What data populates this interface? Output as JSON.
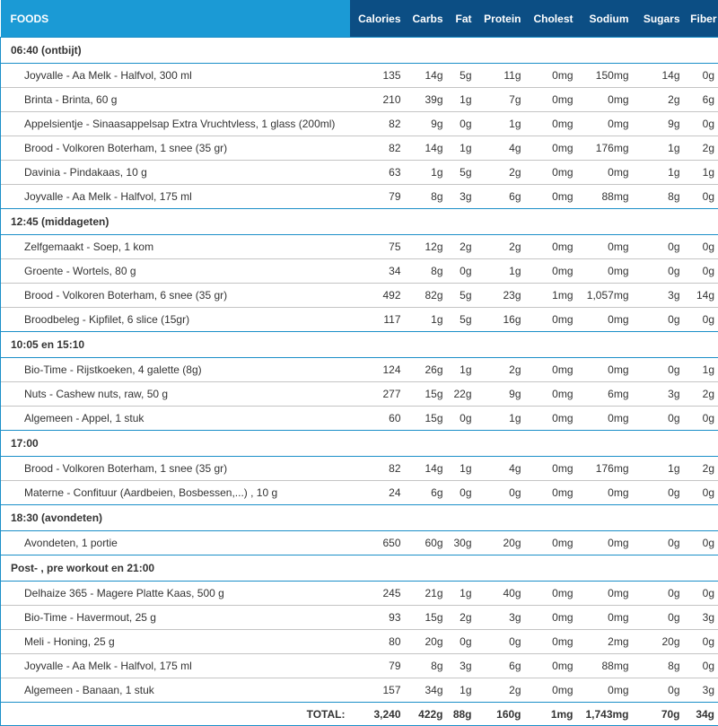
{
  "header": {
    "foods": "FOODS",
    "calories": "Calories",
    "carbs": "Carbs",
    "fat": "Fat",
    "protein": "Protein",
    "cholest": "Cholest",
    "sodium": "Sodium",
    "sugars": "Sugars",
    "fiber": "Fiber"
  },
  "meals": [
    {
      "name": "06:40 (ontbijt)",
      "items": [
        {
          "name": "Joyvalle - Aa Melk - Halfvol, 300 ml",
          "calories": "135",
          "carbs": "14g",
          "fat": "5g",
          "protein": "11g",
          "cholest": "0mg",
          "sodium": "150mg",
          "sugars": "14g",
          "fiber": "0g"
        },
        {
          "name": "Brinta - Brinta, 60 g",
          "calories": "210",
          "carbs": "39g",
          "fat": "1g",
          "protein": "7g",
          "cholest": "0mg",
          "sodium": "0mg",
          "sugars": "2g",
          "fiber": "6g"
        },
        {
          "name": "Appelsientje - Sinaasappelsap Extra Vruchtvless, 1 glass (200ml)",
          "calories": "82",
          "carbs": "9g",
          "fat": "0g",
          "protein": "1g",
          "cholest": "0mg",
          "sodium": "0mg",
          "sugars": "9g",
          "fiber": "0g"
        },
        {
          "name": "Brood - Volkoren Boterham, 1 snee (35 gr)",
          "calories": "82",
          "carbs": "14g",
          "fat": "1g",
          "protein": "4g",
          "cholest": "0mg",
          "sodium": "176mg",
          "sugars": "1g",
          "fiber": "2g"
        },
        {
          "name": "Davinia - Pindakaas, 10 g",
          "calories": "63",
          "carbs": "1g",
          "fat": "5g",
          "protein": "2g",
          "cholest": "0mg",
          "sodium": "0mg",
          "sugars": "1g",
          "fiber": "1g"
        },
        {
          "name": "Joyvalle - Aa Melk - Halfvol, 175 ml",
          "calories": "79",
          "carbs": "8g",
          "fat": "3g",
          "protein": "6g",
          "cholest": "0mg",
          "sodium": "88mg",
          "sugars": "8g",
          "fiber": "0g"
        }
      ]
    },
    {
      "name": "12:45 (middageten)",
      "items": [
        {
          "name": "Zelfgemaakt - Soep, 1 kom",
          "calories": "75",
          "carbs": "12g",
          "fat": "2g",
          "protein": "2g",
          "cholest": "0mg",
          "sodium": "0mg",
          "sugars": "0g",
          "fiber": "0g"
        },
        {
          "name": "Groente - Wortels, 80 g",
          "calories": "34",
          "carbs": "8g",
          "fat": "0g",
          "protein": "1g",
          "cholest": "0mg",
          "sodium": "0mg",
          "sugars": "0g",
          "fiber": "0g"
        },
        {
          "name": "Brood - Volkoren Boterham, 6 snee (35 gr)",
          "calories": "492",
          "carbs": "82g",
          "fat": "5g",
          "protein": "23g",
          "cholest": "1mg",
          "sodium": "1,057mg",
          "sugars": "3g",
          "fiber": "14g"
        },
        {
          "name": "Broodbeleg - Kipfilet, 6 slice (15gr)",
          "calories": "117",
          "carbs": "1g",
          "fat": "5g",
          "protein": "16g",
          "cholest": "0mg",
          "sodium": "0mg",
          "sugars": "0g",
          "fiber": "0g"
        }
      ]
    },
    {
      "name": "10:05 en 15:10",
      "items": [
        {
          "name": "Bio-Time - Rijstkoeken, 4 galette (8g)",
          "calories": "124",
          "carbs": "26g",
          "fat": "1g",
          "protein": "2g",
          "cholest": "0mg",
          "sodium": "0mg",
          "sugars": "0g",
          "fiber": "1g"
        },
        {
          "name": "Nuts - Cashew nuts, raw, 50 g",
          "calories": "277",
          "carbs": "15g",
          "fat": "22g",
          "protein": "9g",
          "cholest": "0mg",
          "sodium": "6mg",
          "sugars": "3g",
          "fiber": "2g"
        },
        {
          "name": "Algemeen - Appel, 1 stuk",
          "calories": "60",
          "carbs": "15g",
          "fat": "0g",
          "protein": "1g",
          "cholest": "0mg",
          "sodium": "0mg",
          "sugars": "0g",
          "fiber": "0g"
        }
      ]
    },
    {
      "name": "17:00",
      "items": [
        {
          "name": "Brood - Volkoren Boterham, 1 snee (35 gr)",
          "calories": "82",
          "carbs": "14g",
          "fat": "1g",
          "protein": "4g",
          "cholest": "0mg",
          "sodium": "176mg",
          "sugars": "1g",
          "fiber": "2g"
        },
        {
          "name": "Materne - Confituur (Aardbeien, Bosbessen,...) , 10 g",
          "calories": "24",
          "carbs": "6g",
          "fat": "0g",
          "protein": "0g",
          "cholest": "0mg",
          "sodium": "0mg",
          "sugars": "0g",
          "fiber": "0g"
        }
      ]
    },
    {
      "name": "18:30 (avondeten)",
      "items": [
        {
          "name": "Avondeten, 1 portie",
          "calories": "650",
          "carbs": "60g",
          "fat": "30g",
          "protein": "20g",
          "cholest": "0mg",
          "sodium": "0mg",
          "sugars": "0g",
          "fiber": "0g"
        }
      ]
    },
    {
      "name": "Post- , pre workout en 21:00",
      "items": [
        {
          "name": "Delhaize 365 - Magere Platte Kaas, 500 g",
          "calories": "245",
          "carbs": "21g",
          "fat": "1g",
          "protein": "40g",
          "cholest": "0mg",
          "sodium": "0mg",
          "sugars": "0g",
          "fiber": "0g"
        },
        {
          "name": "Bio-Time - Havermout, 25 g",
          "calories": "93",
          "carbs": "15g",
          "fat": "2g",
          "protein": "3g",
          "cholest": "0mg",
          "sodium": "0mg",
          "sugars": "0g",
          "fiber": "3g"
        },
        {
          "name": "Meli - Honing, 25 g",
          "calories": "80",
          "carbs": "20g",
          "fat": "0g",
          "protein": "0g",
          "cholest": "0mg",
          "sodium": "2mg",
          "sugars": "20g",
          "fiber": "0g"
        },
        {
          "name": "Joyvalle - Aa Melk - Halfvol, 175 ml",
          "calories": "79",
          "carbs": "8g",
          "fat": "3g",
          "protein": "6g",
          "cholest": "0mg",
          "sodium": "88mg",
          "sugars": "8g",
          "fiber": "0g"
        },
        {
          "name": "Algemeen - Banaan, 1 stuk",
          "calories": "157",
          "carbs": "34g",
          "fat": "1g",
          "protein": "2g",
          "cholest": "0mg",
          "sodium": "0mg",
          "sugars": "0g",
          "fiber": "3g"
        }
      ]
    }
  ],
  "total": {
    "label": "TOTAL:",
    "calories": "3,240",
    "carbs": "422g",
    "fat": "88g",
    "protein": "160g",
    "cholest": "1mg",
    "sodium": "1,743mg",
    "sugars": "70g",
    "fiber": "34g"
  },
  "colors": {
    "header_foods_bg": "#1b9ad5",
    "header_nutrients_bg": "#0c4e84",
    "border_accent": "#1b8fc8",
    "row_divider": "#c4c4c4"
  }
}
